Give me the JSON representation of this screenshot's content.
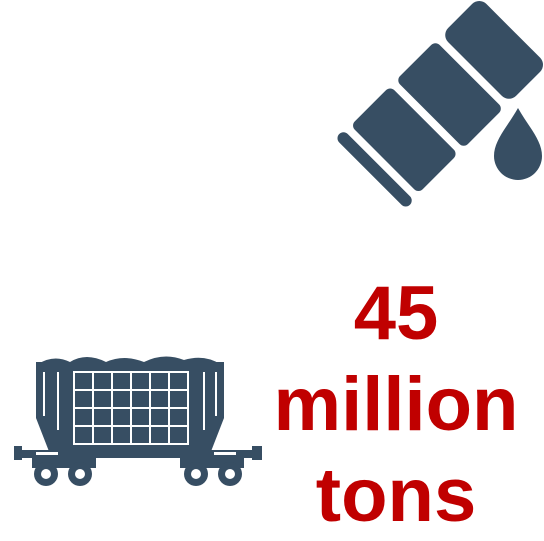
{
  "stat": {
    "number": "45",
    "unit_line1": "million",
    "unit_line2": "tons"
  },
  "icons": {
    "barrel": "oil-barrel-icon",
    "drop": "oil-drop-icon",
    "railcar": "hopper-railcar-icon"
  },
  "colors": {
    "icon": "#374e63",
    "stat_text": "#c00000",
    "background": "#ffffff"
  }
}
